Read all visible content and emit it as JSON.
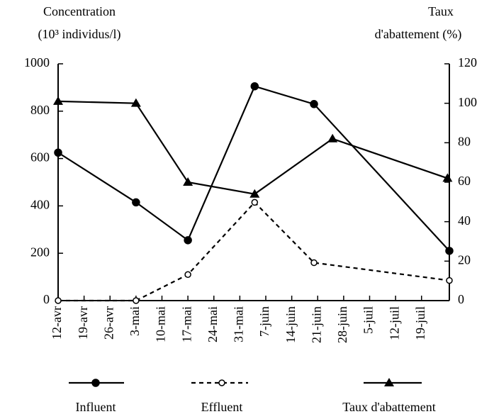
{
  "chart_data": {
    "type": "line",
    "y_label": [
      "Concentration",
      "(10³ individus/l)"
    ],
    "y2_label": [
      "Taux",
      "d'abattement (%)"
    ],
    "xlim": [
      0,
      105.5
    ],
    "xticks": [
      {
        "value": 0,
        "label": "12-avr"
      },
      {
        "value": 7,
        "label": "19-avr"
      },
      {
        "value": 14,
        "label": "26-avr"
      },
      {
        "value": 21,
        "label": "3-mai"
      },
      {
        "value": 28,
        "label": "10-mai"
      },
      {
        "value": 35,
        "label": "17-mai"
      },
      {
        "value": 42,
        "label": "24-mai"
      },
      {
        "value": 49,
        "label": "31-mai"
      },
      {
        "value": 56,
        "label": "7-juin"
      },
      {
        "value": 63,
        "label": "14-juin"
      },
      {
        "value": 70,
        "label": "21-juin"
      },
      {
        "value": 77,
        "label": "28-juin"
      },
      {
        "value": 84,
        "label": "5-juil"
      },
      {
        "value": 91,
        "label": "12-juil"
      },
      {
        "value": 98,
        "label": "19-juil"
      }
    ],
    "ylim": [
      0,
      1000
    ],
    "yticks": [
      0,
      200,
      400,
      600,
      800,
      1000
    ],
    "y2lim": [
      0,
      120
    ],
    "y2ticks": [
      0,
      20,
      40,
      60,
      80,
      100,
      120
    ],
    "series": [
      {
        "name": "Influent",
        "color": "#000000",
        "marker": "dot",
        "dash": false,
        "x": [
          0,
          21,
          35,
          53,
          69,
          105.5
        ],
        "values": [
          625,
          415,
          255,
          905,
          830,
          210
        ]
      },
      {
        "name": "Effluent",
        "color": "#000000",
        "marker": "ring",
        "dash": true,
        "x": [
          0,
          21,
          35,
          53,
          69,
          105.5
        ],
        "values": [
          0,
          0,
          110,
          415,
          160,
          85
        ]
      },
      {
        "name": "Taux d'abattement",
        "color": "#000000",
        "marker": "triangle",
        "dash": false,
        "axis": "y2",
        "x": [
          0,
          21,
          35,
          53,
          74,
          105
        ],
        "values": [
          101,
          100,
          60,
          54,
          82,
          62
        ]
      }
    ]
  }
}
